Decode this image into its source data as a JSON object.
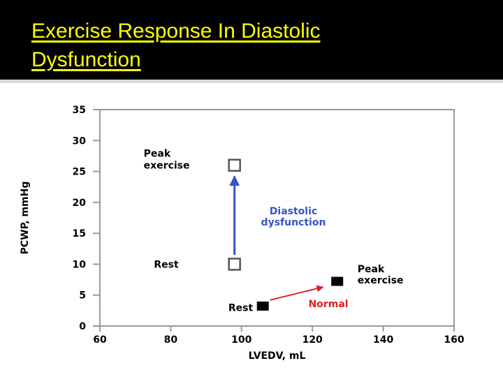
{
  "slide": {
    "title_line1": "Exercise Response In Diastolic",
    "title_line2": "Dysfunction"
  },
  "chart_data": {
    "type": "scatter",
    "title": "",
    "xlabel": "LVEDV, mL",
    "ylabel": "PCWP, mmHg",
    "xlim": [
      60,
      160
    ],
    "ylim": [
      0,
      35
    ],
    "x_ticks": [
      60,
      80,
      100,
      120,
      140,
      160
    ],
    "y_ticks": [
      0,
      5,
      10,
      15,
      20,
      25,
      30,
      35
    ],
    "grid": false,
    "series": [
      {
        "marker": "open-square",
        "color": "#555555",
        "points": [
          {
            "x": 98,
            "y": 10,
            "label": "Rest"
          },
          {
            "x": 98,
            "y": 26,
            "label": "Peak exercise"
          }
        ]
      },
      {
        "marker": "filled-square",
        "color": "#000000",
        "points": [
          {
            "x": 106,
            "y": 3,
            "label": "Rest"
          },
          {
            "x": 127,
            "y": 7,
            "label": "Peak exercise"
          }
        ]
      }
    ],
    "annotations": [
      {
        "text_line1": "Diastolic",
        "text_line2": "dysfunction",
        "color": "#3a52c8",
        "from": [
          98,
          11.5
        ],
        "to": [
          98,
          24.2
        ]
      },
      {
        "text": "Normal",
        "color": "#e02020",
        "from": [
          108,
          4.2
        ],
        "to": [
          123,
          6.3
        ]
      }
    ]
  }
}
